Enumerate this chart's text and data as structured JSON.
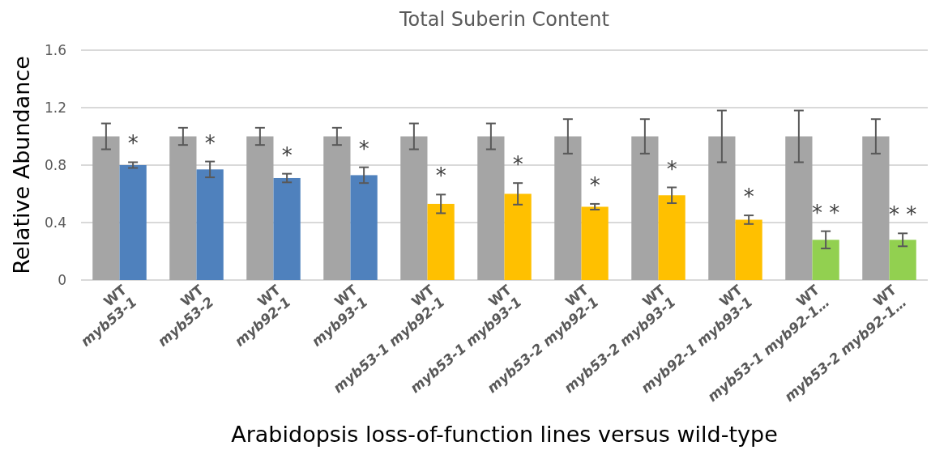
{
  "chart_data": {
    "type": "bar",
    "title": "Total Suberin Content",
    "xlabel": "Arabidopsis loss-of-function lines versus wild-type",
    "ylabel": "Relative Abundance",
    "categories": [
      "WT\nmyb53-1",
      "WT\nmyb53-2",
      "WT\nmyb92-1",
      "WT\nmyb93-1",
      "WT\nmyb53-1 myb92-1",
      "WT\nmyb53-1 myb93-1",
      "WT\nmyb53-2 myb92-1",
      "WT\nmyb53-2 myb93-1",
      "WT\nmyb92-1 myb93-1",
      "WT\nmyb53-1 myb92-1…",
      "WT\nmyb53-2 myb92-1…"
    ],
    "series": [
      {
        "color": "#a5a5a5",
        "values": [
          1,
          1,
          1,
          1,
          1,
          1,
          1,
          1,
          1,
          1,
          1
        ],
        "errors": [
          0.09,
          0.06,
          0.06,
          0.06,
          0.09,
          0.09,
          0.12,
          0.12,
          0.18,
          0.18,
          0.12
        ]
      },
      {
        "colors": [
          "#4f81bd",
          "#4f81bd",
          "#4f81bd",
          "#4f81bd",
          "#ffc000",
          "#ffc000",
          "#ffc000",
          "#ffc000",
          "#ffc000",
          "#92d050",
          "#92d050"
        ],
        "values": [
          0.8,
          0.77,
          0.71,
          0.73,
          0.53,
          0.6,
          0.51,
          0.59,
          0.42,
          0.28,
          0.28
        ],
        "errors": [
          0.02,
          0.055,
          0.03,
          0.055,
          0.065,
          0.075,
          0.02,
          0.055,
          0.03,
          0.06,
          0.045
        ]
      }
    ],
    "ylim": [
      0,
      1.6
    ],
    "yticks": [
      0,
      0.4,
      0.8,
      1.2,
      1.6
    ],
    "grid": "y",
    "annotations": [
      "*",
      "*",
      "*",
      "*",
      "*",
      "*",
      "*",
      "*",
      "*",
      "* *",
      "* *"
    ]
  }
}
